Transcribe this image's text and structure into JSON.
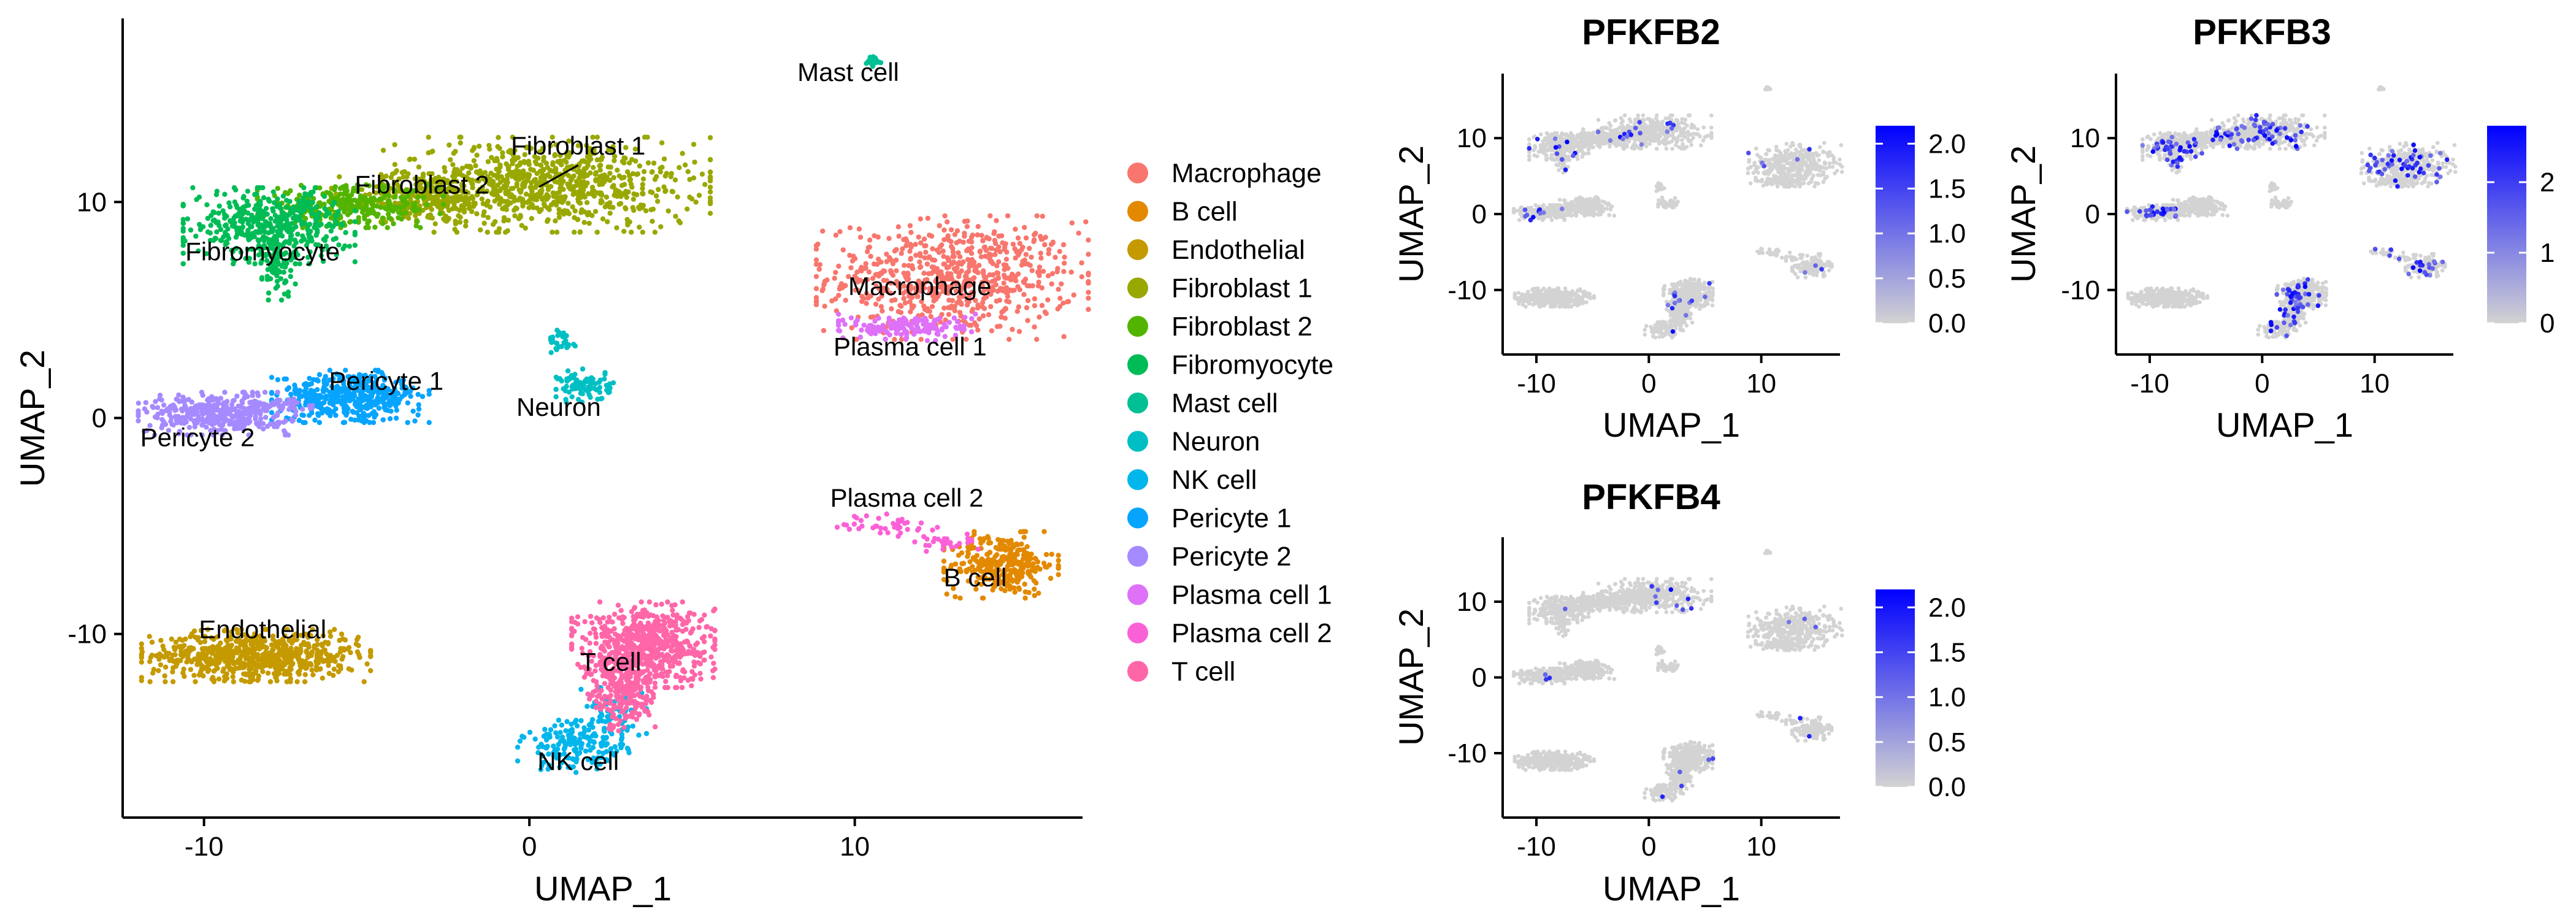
{
  "chart_data": [
    {
      "type": "scatter",
      "title": "",
      "xlabel": "UMAP_1",
      "ylabel": "UMAP_2",
      "xlim": [
        -12.5,
        17
      ],
      "ylim": [
        -18.5,
        18.5
      ],
      "x_ticks": [
        -10,
        0,
        10
      ],
      "y_ticks": [
        -10,
        0,
        10
      ],
      "x_tick_labels": [
        "-10",
        "0",
        "10"
      ],
      "y_tick_labels": [
        "-10",
        "0",
        "10"
      ],
      "grid": false,
      "legend_position": "right",
      "series": [
        {
          "name": "Macrophage",
          "color": "#F8766D",
          "label": "Macrophage",
          "label_xy": [
            12,
            5.7
          ],
          "blobs": [
            {
              "x": 13,
              "y": 6.5,
              "sx": 1.9,
              "sy": 1.3,
              "n": 700
            }
          ]
        },
        {
          "name": "B cell",
          "color": "#E38900",
          "label": "B cell",
          "label_xy": [
            13.7,
            -7.8
          ],
          "blobs": [
            {
              "x": 14.5,
              "y": -6.8,
              "sx": 0.8,
              "sy": 0.7,
              "n": 300
            }
          ]
        },
        {
          "name": "Endothelial",
          "color": "#C49A00",
          "label": "Endothelial",
          "label_xy": [
            -8.2,
            -10.2
          ],
          "blobs": [
            {
              "x": -8.4,
              "y": -11.0,
              "sx": 1.6,
              "sy": 0.55,
              "n": 700
            }
          ]
        },
        {
          "name": "Fibroblast 1",
          "color": "#99A800",
          "label": "Fibroblast 1",
          "label_xy": [
            1.5,
            12.2
          ],
          "blobs": [
            {
              "x": 0.5,
              "y": 10.8,
              "sx": 2.3,
              "sy": 1.0,
              "n": 800
            },
            {
              "x": -3,
              "y": 10.2,
              "sx": 1.4,
              "sy": 0.55,
              "n": 250
            }
          ]
        },
        {
          "name": "Fibroblast 2",
          "color": "#53B400",
          "label": "Fibroblast 2",
          "label_xy": [
            -3.3,
            10.4
          ],
          "blobs": [
            {
              "x": -5.5,
              "y": 9.8,
              "sx": 1.3,
              "sy": 0.45,
              "n": 300
            }
          ]
        },
        {
          "name": "Fibromyocyte",
          "color": "#00BC56",
          "label": "Fibromyocyte",
          "label_xy": [
            -8.2,
            7.3
          ],
          "blobs": [
            {
              "x": -8.0,
              "y": 8.9,
              "sx": 1.2,
              "sy": 0.8,
              "n": 450
            },
            {
              "x": -7.7,
              "y": 7.0,
              "sx": 0.25,
              "sy": 0.7,
              "n": 80
            }
          ]
        },
        {
          "name": "Mast cell",
          "color": "#00C094",
          "label": "Mast cell",
          "label_xy": [
            9.8,
            15.6
          ],
          "blobs": [
            {
              "x": 10.6,
              "y": 16.5,
              "sx": 0.12,
              "sy": 0.12,
              "n": 25
            }
          ]
        },
        {
          "name": "Neuron",
          "color": "#00BFC4",
          "label": "Neuron",
          "label_xy": [
            0.9,
            0.1
          ],
          "blobs": [
            {
              "x": 1.7,
              "y": 1.5,
              "sx": 0.4,
              "sy": 0.35,
              "n": 90
            },
            {
              "x": 1.0,
              "y": 3.5,
              "sx": 0.2,
              "sy": 0.3,
              "n": 30
            }
          ]
        },
        {
          "name": "NK cell",
          "color": "#00B6EB",
          "label": "NK cell",
          "label_xy": [
            1.5,
            -16.3
          ],
          "blobs": [
            {
              "x": 1.4,
              "y": -15.2,
              "sx": 0.8,
              "sy": 0.55,
              "n": 160
            },
            {
              "x": 2.5,
              "y": -13.8,
              "sx": 0.5,
              "sy": 0.6,
              "n": 70
            }
          ]
        },
        {
          "name": "Pericyte 1",
          "color": "#06A4FF",
          "label": "Pericyte 1",
          "label_xy": [
            -4.4,
            1.3
          ],
          "blobs": [
            {
              "x": -5.5,
              "y": 1.0,
              "sx": 1.1,
              "sy": 0.55,
              "n": 450
            }
          ]
        },
        {
          "name": "Pericyte 2",
          "color": "#A58AFF",
          "label": "Pericyte 2",
          "label_xy": [
            -10.2,
            -1.3
          ],
          "blobs": [
            {
              "x": -9.6,
              "y": 0.2,
              "sx": 1.1,
              "sy": 0.45,
              "n": 380
            },
            {
              "x": -7.6,
              "y": 0.6,
              "sx": 0.5,
              "sy": 0.2,
              "n": 40
            }
          ]
        },
        {
          "name": "Plasma cell 1",
          "color": "#DF70F8",
          "label": "Plasma cell 1",
          "label_xy": [
            11.7,
            2.9
          ],
          "blobs": [
            {
              "x": 11.7,
              "y": 4.2,
              "sx": 1.0,
              "sy": 0.28,
              "n": 160
            }
          ]
        },
        {
          "name": "Plasma cell 2",
          "color": "#FB61D7",
          "label": "Plasma cell 2",
          "label_xy": [
            11.6,
            -4.1
          ],
          "blobs": [
            {
              "x": 11,
              "y": -5.0,
              "sx": 0.7,
              "sy": 0.25,
              "n": 40
            },
            {
              "x": 12.7,
              "y": -5.7,
              "sx": 0.6,
              "sy": 0.25,
              "n": 30
            }
          ]
        },
        {
          "name": "T cell",
          "color": "#FF66A8",
          "label": "T cell",
          "label_xy": [
            2.5,
            -11.7
          ],
          "blobs": [
            {
              "x": 3.5,
              "y": -10.5,
              "sx": 1.0,
              "sy": 0.9,
              "n": 650
            },
            {
              "x": 2.9,
              "y": -12.8,
              "sx": 0.5,
              "sy": 0.8,
              "n": 200
            }
          ]
        }
      ]
    },
    {
      "type": "scatter",
      "title": "PFKFB2",
      "xlabel": "UMAP_1",
      "ylabel": "UMAP_2",
      "xlim": [
        -13,
        17
      ],
      "ylim": [
        -18.5,
        18.5
      ],
      "x_ticks": [
        -10,
        0,
        10
      ],
      "y_ticks": [
        -10,
        0,
        10
      ],
      "x_tick_labels": [
        "-10",
        "0",
        "10"
      ],
      "y_tick_labels": [
        "-10",
        "0",
        "10"
      ],
      "colorbar": {
        "low_color": "#D3D3D3",
        "high_color": "#0000FF",
        "min": 0,
        "max": 2.2,
        "ticks": [
          0.0,
          0.5,
          1.0,
          1.5,
          2.0
        ],
        "tick_labels": [
          "0.0",
          "0.5",
          "1.0",
          "1.5",
          "2.0"
        ]
      },
      "expression_level": 0.015
    },
    {
      "type": "scatter",
      "title": "PFKFB3",
      "xlabel": "UMAP_1",
      "ylabel": "UMAP_2",
      "xlim": [
        -13,
        17
      ],
      "ylim": [
        -18.5,
        18.5
      ],
      "x_ticks": [
        -10,
        0,
        10
      ],
      "y_ticks": [
        -10,
        0,
        10
      ],
      "x_tick_labels": [
        "-10",
        "0",
        "10"
      ],
      "y_tick_labels": [
        "-10",
        "0",
        "10"
      ],
      "colorbar": {
        "low_color": "#D3D3D3",
        "high_color": "#0000FF",
        "min": 0,
        "max": 2.8,
        "ticks": [
          0,
          1,
          2
        ],
        "tick_labels": [
          "0",
          "1",
          "2"
        ]
      },
      "expression_level": 0.06
    },
    {
      "type": "scatter",
      "title": "PFKFB4",
      "xlabel": "UMAP_1",
      "ylabel": "UMAP_2",
      "xlim": [
        -13,
        17
      ],
      "ylim": [
        -18.5,
        18.5
      ],
      "x_ticks": [
        -10,
        0,
        10
      ],
      "y_ticks": [
        -10,
        0,
        10
      ],
      "x_tick_labels": [
        "-10",
        "0",
        "10"
      ],
      "y_tick_labels": [
        "-10",
        "0",
        "10"
      ],
      "colorbar": {
        "low_color": "#D3D3D3",
        "high_color": "#0000FF",
        "min": 0,
        "max": 2.2,
        "ticks": [
          0.0,
          0.5,
          1.0,
          1.5,
          2.0
        ],
        "tick_labels": [
          "0.0",
          "0.5",
          "1.0",
          "1.5",
          "2.0"
        ]
      },
      "expression_level": 0.005
    }
  ]
}
